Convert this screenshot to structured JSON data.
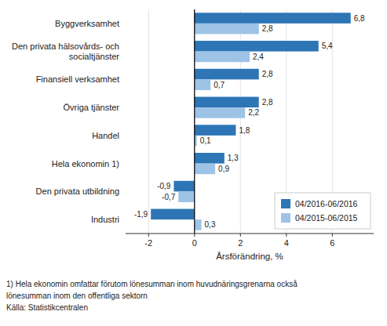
{
  "chart_data": {
    "type": "bar",
    "orientation": "horizontal",
    "categories": [
      "Industri",
      "Den privata utbildning",
      "Hela ekonomin 1)",
      "Handel",
      "Övriga tjänster",
      "Finansiell verksamhet",
      "Den privata hälsovårds- och\nsocialtjänster",
      "Byggverksamhet"
    ],
    "series": [
      {
        "name": "04/2016-06/2016",
        "color": "#2E75B6",
        "values": [
          -1.9,
          -0.9,
          1.3,
          1.8,
          2.8,
          2.8,
          5.4,
          6.8
        ],
        "value_labels": [
          "-1,9",
          "-0,9",
          "1,3",
          "1,8",
          "2,8",
          "2,8",
          "5,4",
          "6,8"
        ]
      },
      {
        "name": "04/2015-06/2015",
        "color": "#9DC3E6",
        "values": [
          0.3,
          -0.7,
          0.9,
          0.1,
          2.2,
          0.7,
          2.4,
          2.8
        ],
        "value_labels": [
          "0,3",
          "-0,7",
          "0,9",
          "0,1",
          "2,2",
          "0,7",
          "2,4",
          "2,8"
        ]
      }
    ],
    "xlabel": "Årsförändring, %",
    "xlim": [
      -3.0,
      7.8
    ],
    "xticks": [
      -2,
      0,
      2,
      4,
      6
    ],
    "grid": true,
    "legend": "lower right",
    "data_labels": true,
    "annotations": [
      "1) Hela ekonomin omfattar förutom lönesumman inom huvudnäringsgrenarna också",
      "lönesumman inom den offentliga sektorn",
      "Källa: Statistikcentralen"
    ]
  }
}
